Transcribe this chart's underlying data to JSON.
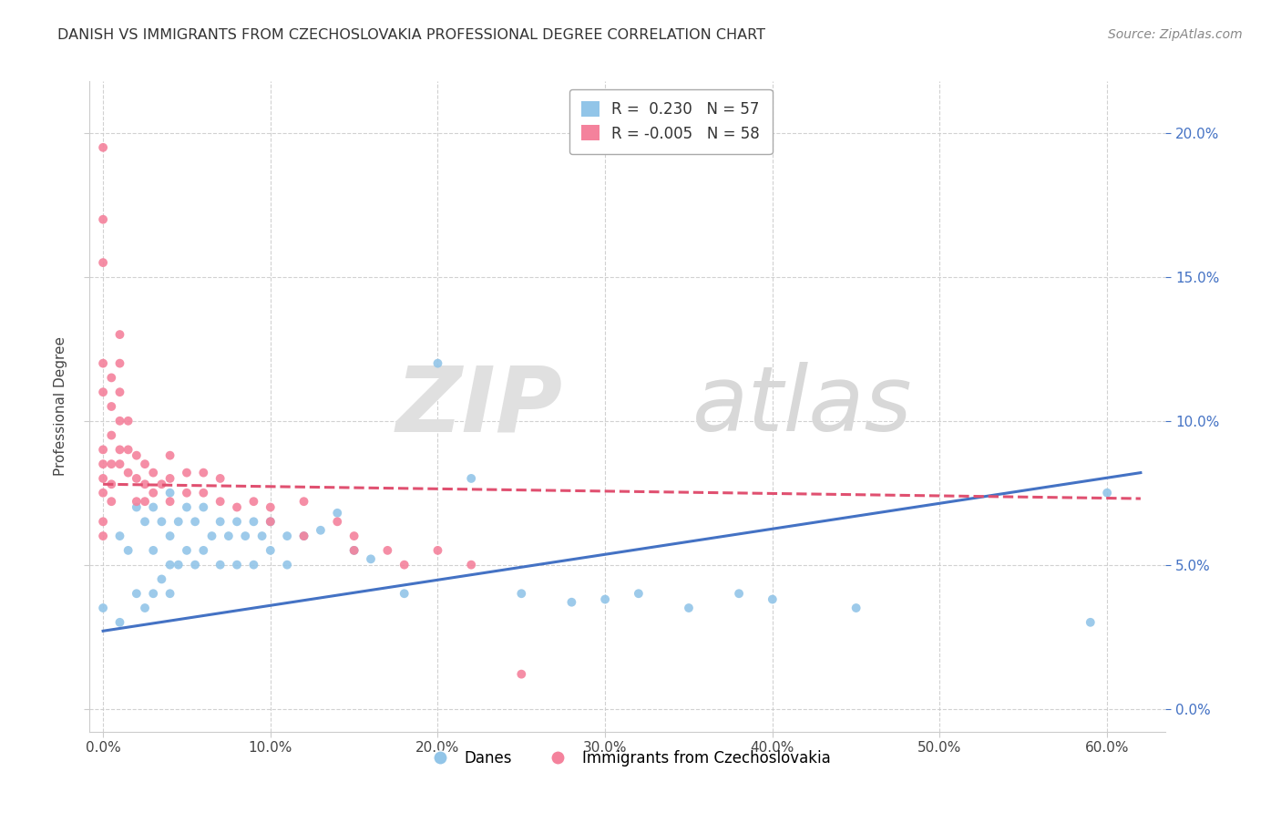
{
  "title": "DANISH VS IMMIGRANTS FROM CZECHOSLOVAKIA PROFESSIONAL DEGREE CORRELATION CHART",
  "source_text": "Source: ZipAtlas.com",
  "ylabel": "Professional Degree",
  "xlabel_ticks": [
    "0.0%",
    "10.0%",
    "20.0%",
    "30.0%",
    "40.0%",
    "50.0%",
    "60.0%"
  ],
  "xlabel_vals": [
    0.0,
    0.1,
    0.2,
    0.3,
    0.4,
    0.5,
    0.6
  ],
  "ylabel_ticks": [
    "0.0%",
    "5.0%",
    "10.0%",
    "15.0%",
    "20.0%"
  ],
  "ylabel_vals": [
    0.0,
    0.05,
    0.1,
    0.15,
    0.2
  ],
  "xlim": [
    -0.008,
    0.635
  ],
  "ylim": [
    -0.008,
    0.218
  ],
  "r_danes": 0.23,
  "n_danes": 57,
  "r_immigrants": -0.005,
  "n_immigrants": 58,
  "danes_color": "#92c5e8",
  "immigrants_color": "#f4829c",
  "danes_line_color": "#4472c4",
  "immigrants_line_color": "#e05070",
  "legend_label_danes": "Danes",
  "legend_label_immigrants": "Immigrants from Czechoslovakia",
  "danes_scatter_x": [
    0.0,
    0.01,
    0.01,
    0.015,
    0.02,
    0.02,
    0.025,
    0.025,
    0.03,
    0.03,
    0.03,
    0.035,
    0.035,
    0.04,
    0.04,
    0.04,
    0.04,
    0.045,
    0.045,
    0.05,
    0.05,
    0.055,
    0.055,
    0.06,
    0.06,
    0.065,
    0.07,
    0.07,
    0.075,
    0.08,
    0.08,
    0.085,
    0.09,
    0.09,
    0.095,
    0.1,
    0.1,
    0.11,
    0.11,
    0.12,
    0.13,
    0.14,
    0.15,
    0.16,
    0.18,
    0.2,
    0.22,
    0.25,
    0.28,
    0.3,
    0.32,
    0.35,
    0.38,
    0.4,
    0.45,
    0.59,
    0.6
  ],
  "danes_scatter_y": [
    0.035,
    0.06,
    0.03,
    0.055,
    0.07,
    0.04,
    0.065,
    0.035,
    0.07,
    0.055,
    0.04,
    0.065,
    0.045,
    0.075,
    0.06,
    0.05,
    0.04,
    0.065,
    0.05,
    0.07,
    0.055,
    0.065,
    0.05,
    0.07,
    0.055,
    0.06,
    0.065,
    0.05,
    0.06,
    0.065,
    0.05,
    0.06,
    0.065,
    0.05,
    0.06,
    0.065,
    0.055,
    0.06,
    0.05,
    0.06,
    0.062,
    0.068,
    0.055,
    0.052,
    0.04,
    0.12,
    0.08,
    0.04,
    0.037,
    0.038,
    0.04,
    0.035,
    0.04,
    0.038,
    0.035,
    0.03,
    0.075
  ],
  "immigrants_scatter_x": [
    0.0,
    0.0,
    0.0,
    0.0,
    0.0,
    0.0,
    0.0,
    0.0,
    0.0,
    0.0,
    0.0,
    0.005,
    0.005,
    0.005,
    0.005,
    0.005,
    0.005,
    0.01,
    0.01,
    0.01,
    0.01,
    0.01,
    0.01,
    0.015,
    0.015,
    0.015,
    0.02,
    0.02,
    0.02,
    0.025,
    0.025,
    0.025,
    0.03,
    0.03,
    0.035,
    0.04,
    0.04,
    0.04,
    0.05,
    0.05,
    0.06,
    0.06,
    0.07,
    0.07,
    0.08,
    0.09,
    0.1,
    0.12,
    0.14,
    0.15,
    0.17,
    0.2,
    0.22,
    0.25,
    0.1,
    0.12,
    0.15,
    0.18
  ],
  "immigrants_scatter_y": [
    0.195,
    0.17,
    0.155,
    0.12,
    0.11,
    0.09,
    0.085,
    0.08,
    0.075,
    0.065,
    0.06,
    0.115,
    0.105,
    0.095,
    0.085,
    0.078,
    0.072,
    0.13,
    0.12,
    0.11,
    0.1,
    0.09,
    0.085,
    0.1,
    0.09,
    0.082,
    0.088,
    0.08,
    0.072,
    0.085,
    0.078,
    0.072,
    0.082,
    0.075,
    0.078,
    0.088,
    0.08,
    0.072,
    0.082,
    0.075,
    0.082,
    0.075,
    0.08,
    0.072,
    0.07,
    0.072,
    0.07,
    0.072,
    0.065,
    0.06,
    0.055,
    0.055,
    0.05,
    0.012,
    0.065,
    0.06,
    0.055,
    0.05
  ],
  "danes_trendline_x": [
    0.0,
    0.62
  ],
  "danes_trendline_y": [
    0.027,
    0.082
  ],
  "immigrants_trendline_x": [
    0.0,
    0.62
  ],
  "immigrants_trendline_y": [
    0.078,
    0.073
  ]
}
